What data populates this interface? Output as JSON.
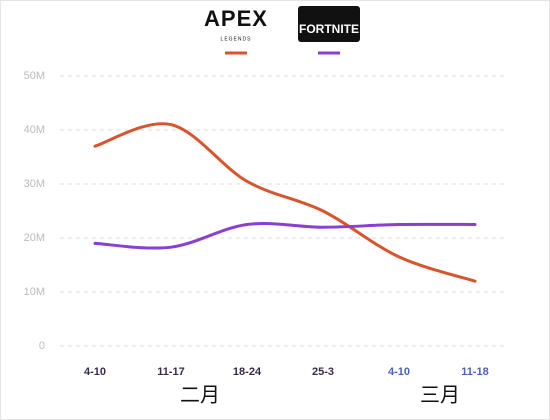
{
  "chart_data": {
    "type": "line",
    "categories": [
      "4-10",
      "11-17",
      "18-24",
      "25-3",
      "4-10",
      "11-18"
    ],
    "months": [
      "二月",
      "三月"
    ],
    "apex_tagline": "LEGENDS",
    "series": [
      {
        "name": "APEX",
        "color": "#d9542c",
        "values": [
          37,
          41,
          30.5,
          25,
          16.5,
          12
        ]
      },
      {
        "name": "FORTNITE",
        "color": "#8a3fd1",
        "values": [
          19,
          18.3,
          22.5,
          22,
          22.5,
          22.5
        ]
      }
    ],
    "ylim": [
      0,
      50
    ],
    "yticks": [
      0,
      {
        "value": 10,
        "label": "10M"
      },
      {
        "value": 20,
        "label": "20M"
      },
      {
        "value": 30,
        "label": "30M"
      },
      {
        "value": 40,
        "label": "40M"
      },
      {
        "value": 50,
        "label": "50M"
      }
    ],
    "grid": true
  }
}
